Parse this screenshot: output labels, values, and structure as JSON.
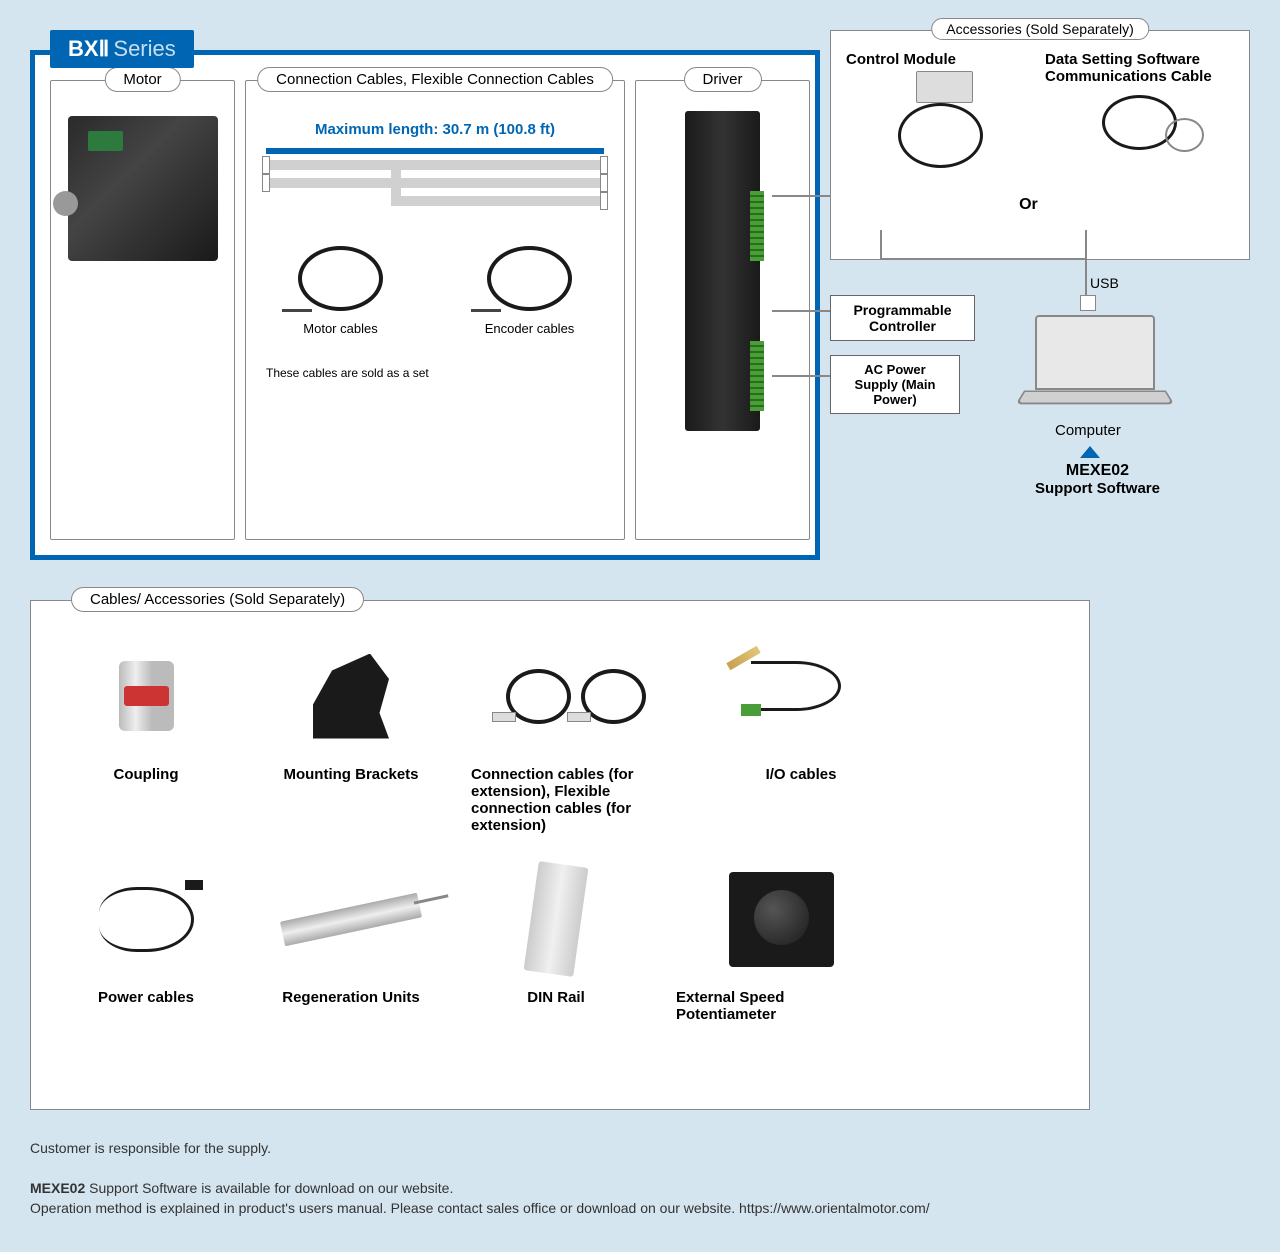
{
  "series": {
    "badge_bold": "BXⅡ",
    "badge_light": "Series"
  },
  "main": {
    "motor_label": "Motor",
    "cables_label": "Connection Cables, Flexible Connection Cables",
    "driver_label": "Driver",
    "max_length": "Maximum length: 30.7 m (100.8 ft)",
    "motor_cables": "Motor cables",
    "encoder_cables": "Encoder cables",
    "cable_note": "These cables are sold as a set"
  },
  "accessories_top": {
    "label": "Accessories (Sold Separately)",
    "control_module": "Control Module",
    "data_cable": "Data Setting Software Communications Cable",
    "or": "Or"
  },
  "connections": {
    "prog_controller": "Programmable Controller",
    "ac_power": "AC Power Supply (Main Power)",
    "usb": "USB",
    "computer": "Computer",
    "mexe": "MEXE02",
    "mexe_sub": "Support Software"
  },
  "accessories_lower": {
    "label": "Cables/ Accessories (Sold Separately)",
    "items": {
      "coupling": "Coupling",
      "brackets": "Mounting Brackets",
      "ext_cables": "Connection cables (for extension), Flexible connection cables (for extension)",
      "io_cables": "I/O cables",
      "power_cables": "Power cables",
      "regen": "Regeneration Units",
      "din": "DIN Rail",
      "pot": "External Speed Potentiameter"
    }
  },
  "footer": {
    "line1": "Customer is responsible for the supply.",
    "line2a": "MEXE02",
    "line2b": " Support Software is available for download on our website.",
    "line3": "Operation method is explained in product's users manual. Please contact sales office or download on our website. https://www.orientalmotor.com/"
  },
  "colors": {
    "primary_blue": "#0066b3",
    "background": "#d4e5ef",
    "box_bg": "#ffffff",
    "border_gray": "#888888",
    "line_gray": "#d0d0d0",
    "dark": "#1a1a1a",
    "green": "#4a9e3a"
  }
}
